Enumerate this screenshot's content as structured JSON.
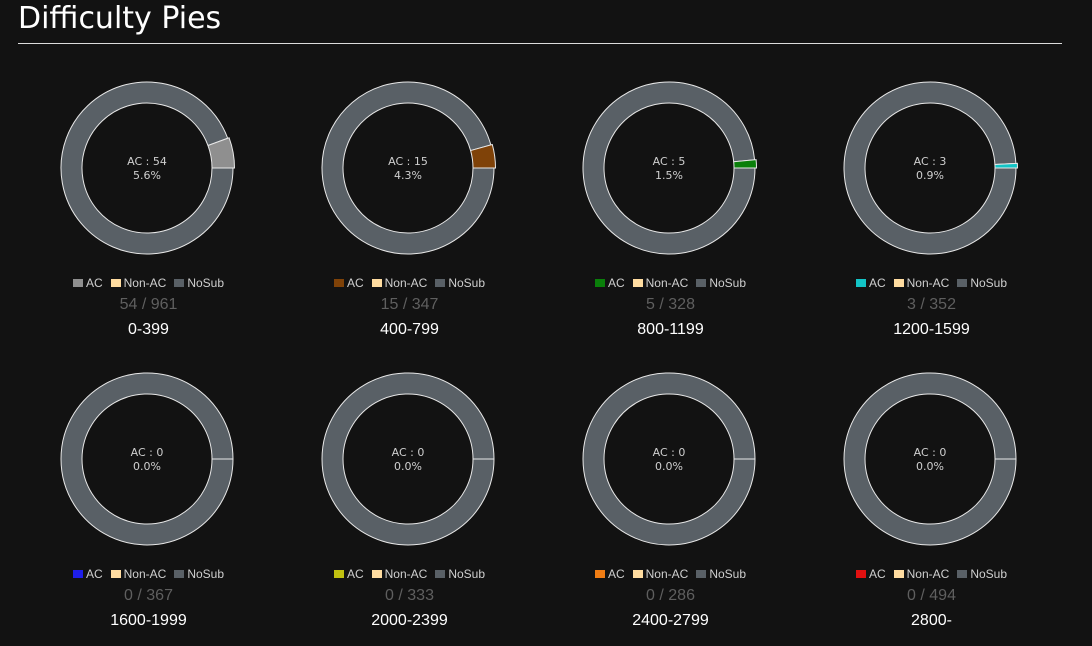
{
  "page": {
    "title": "Difficulty Pies"
  },
  "legend_labels": {
    "ac": "AC",
    "non_ac": "Non-AC",
    "nosub": "NoSub"
  },
  "colors": {
    "non_ac": "#ffdca0",
    "nosub": "#596066",
    "stroke": "#e8e8e8",
    "background": "#121212"
  },
  "chart_data": [
    {
      "type": "pie",
      "range": "0-399",
      "ac": 54,
      "total": 961,
      "percent": "5.6%",
      "center_label": "AC : 54",
      "counts_label": "54 / 961",
      "ac_color": "#8f8f8f"
    },
    {
      "type": "pie",
      "range": "400-799",
      "ac": 15,
      "total": 347,
      "percent": "4.3%",
      "center_label": "AC : 15",
      "counts_label": "15 / 347",
      "ac_color": "#7f4208"
    },
    {
      "type": "pie",
      "range": "800-1199",
      "ac": 5,
      "total": 328,
      "percent": "1.5%",
      "center_label": "AC : 5",
      "counts_label": "5 / 328",
      "ac_color": "#0a7f0a"
    },
    {
      "type": "pie",
      "range": "1200-1599",
      "ac": 3,
      "total": 352,
      "percent": "0.9%",
      "center_label": "AC : 3",
      "counts_label": "3 / 352",
      "ac_color": "#13c4c6"
    },
    {
      "type": "pie",
      "range": "1600-1999",
      "ac": 0,
      "total": 367,
      "percent": "0.0%",
      "center_label": "AC : 0",
      "counts_label": "0 / 367",
      "ac_color": "#1e1ee8"
    },
    {
      "type": "pie",
      "range": "2000-2399",
      "ac": 0,
      "total": 333,
      "percent": "0.0%",
      "center_label": "AC : 0",
      "counts_label": "0 / 333",
      "ac_color": "#c0c010"
    },
    {
      "type": "pie",
      "range": "2400-2799",
      "ac": 0,
      "total": 286,
      "percent": "0.0%",
      "center_label": "AC : 0",
      "counts_label": "0 / 286",
      "ac_color": "#f07d14"
    },
    {
      "type": "pie",
      "range": "2800-",
      "ac": 0,
      "total": 494,
      "percent": "0.0%",
      "center_label": "AC : 0",
      "counts_label": "0 / 494",
      "ac_color": "#e01010"
    }
  ]
}
